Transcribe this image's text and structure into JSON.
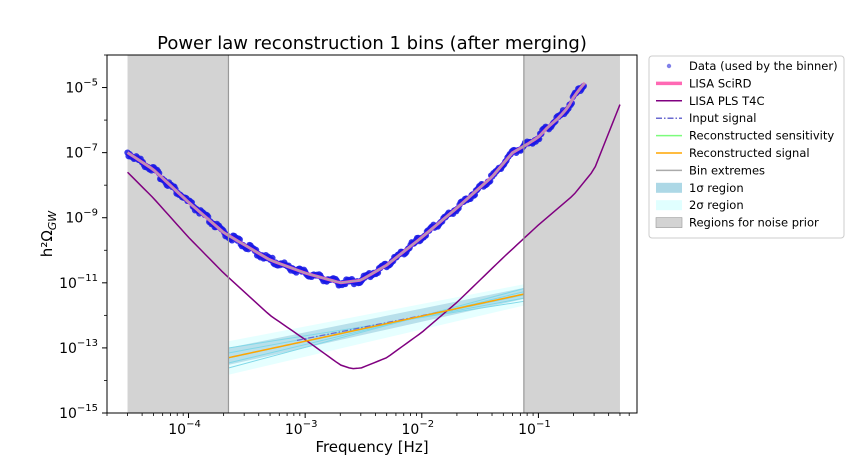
{
  "chart_data": {
    "type": "line",
    "title": "Power law reconstruction 1 bins (after merging)",
    "xlabel": "Frequency [Hz]",
    "ylabel": "h²Ω",
    "ylabel_sub": "GW",
    "xscale": "log",
    "yscale": "log",
    "xlim": [
      2e-05,
      0.7
    ],
    "ylim": [
      1e-15,
      0.0001
    ],
    "grid": false,
    "legend_position": "outside-right",
    "x_ticks": [
      {
        "value": 0.0001,
        "base": "10",
        "exp": "−4"
      },
      {
        "value": 0.001,
        "base": "10",
        "exp": "−3"
      },
      {
        "value": 0.01,
        "base": "10",
        "exp": "−2"
      },
      {
        "value": 0.1,
        "base": "10",
        "exp": "−1"
      }
    ],
    "y_ticks": [
      {
        "value": 1e-15,
        "base": "10",
        "exp": "−15"
      },
      {
        "value": 1e-13,
        "base": "10",
        "exp": "−13"
      },
      {
        "value": 1e-11,
        "base": "10",
        "exp": "−11"
      },
      {
        "value": 1e-09,
        "base": "10",
        "exp": "−9"
      },
      {
        "value": 1e-07,
        "base": "10",
        "exp": "−7"
      },
      {
        "value": 1e-05,
        "base": "10",
        "exp": "−5"
      }
    ],
    "noise_prior_regions": [
      [
        3e-05,
        0.00022
      ],
      [
        0.075,
        0.5
      ]
    ],
    "bin_extremes": [
      0.00022,
      0.075
    ],
    "series": [
      {
        "name": "LISA SciRD",
        "color": "#ff69b4",
        "x": [
          3e-05,
          5e-05,
          0.0001,
          0.0002,
          0.0005,
          0.001,
          0.002,
          0.003,
          0.005,
          0.01,
          0.02,
          0.04,
          0.06,
          0.08,
          0.1,
          0.12,
          0.15,
          0.18,
          0.2,
          0.22,
          0.25
        ],
        "y": [
          1e-07,
          3e-08,
          3e-09,
          3.5e-10,
          5e-11,
          2e-11,
          1e-11,
          1.2e-11,
          3.5e-11,
          2.5e-10,
          2e-09,
          1.8e-08,
          1e-07,
          1.8e-07,
          3e-07,
          6e-07,
          1.2e-06,
          2.5e-06,
          5e-06,
          8e-06,
          1.4e-05
        ]
      },
      {
        "name": "LISA PLS T4C",
        "color": "#800080",
        "x": [
          3e-05,
          5e-05,
          0.0001,
          0.0002,
          0.0005,
          0.001,
          0.002,
          0.0025,
          0.003,
          0.005,
          0.01,
          0.02,
          0.05,
          0.1,
          0.2,
          0.3,
          0.5
        ],
        "y": [
          2.5e-08,
          4e-09,
          2.5e-10,
          2e-11,
          1e-12,
          1.8e-13,
          3e-14,
          2.3e-14,
          2.4e-14,
          5e-14,
          3e-13,
          2.5e-12,
          6e-11,
          6e-10,
          5e-09,
          3e-08,
          3e-06
        ]
      },
      {
        "name": "Reconstructed signal",
        "color": "#ffa500",
        "x": [
          0.00022,
          0.075
        ],
        "y": [
          5e-14,
          4.5e-12
        ]
      },
      {
        "name": "Input signal",
        "color": "#6a6ad0",
        "x": [
          0.00085,
          0.02
        ],
        "y": [
          1.7e-13,
          1.6e-12
        ]
      }
    ],
    "uncertainty_bands": {
      "x": [
        0.00022,
        0.075
      ],
      "one_sigma_lower": [
        3e-14,
        3.2e-12
      ],
      "one_sigma_upper": [
        1e-13,
        7e-12
      ],
      "two_sigma_lower": [
        1.5e-14,
        2e-12
      ],
      "two_sigma_upper": [
        1.6e-13,
        9e-12
      ]
    },
    "legend": [
      {
        "label": "Data (used by the binner)",
        "kind": "dot",
        "color": "#4a4ae0"
      },
      {
        "label": "LISA SciRD",
        "kind": "thickline",
        "color": "#ff69b4"
      },
      {
        "label": "LISA PLS T4C",
        "kind": "line",
        "color": "#800080"
      },
      {
        "label": "Input signal",
        "kind": "dashdot",
        "color": "#6a6ad0"
      },
      {
        "label": "Reconstructed sensitivity",
        "kind": "line",
        "color": "#7cfc7c"
      },
      {
        "label": "Reconstructed signal",
        "kind": "line",
        "color": "#ffa500"
      },
      {
        "label": "Bin extremes",
        "kind": "line",
        "color": "#aaaaaa"
      },
      {
        "label": "1σ region",
        "kind": "patch",
        "color": "#add8e6"
      },
      {
        "label": "2σ region",
        "kind": "patch",
        "color": "#e0ffff"
      },
      {
        "label": "Regions for noise prior",
        "kind": "patch",
        "color": "#d3d3d3"
      }
    ]
  }
}
